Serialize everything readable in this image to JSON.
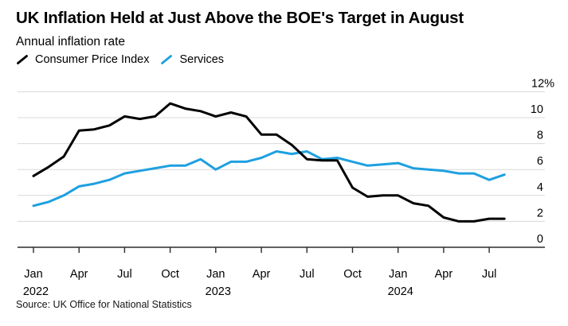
{
  "header": {
    "title": "UK Inflation Held at Just Above the BOE's Target in August",
    "subtitle": "Annual inflation rate"
  },
  "legend": [
    {
      "label": "Consumer Price Index",
      "color": "#000000",
      "icon": "diagonal-line"
    },
    {
      "label": "Services",
      "color": "#1ea0e0",
      "icon": "diagonal-line"
    }
  ],
  "source": "Source: UK Office for National Statistics",
  "chart_data": {
    "type": "line",
    "title": "UK Inflation Held at Just Above the BOE's Target in August",
    "subtitle": "Annual inflation rate",
    "xlabel": "",
    "ylabel": "Annual inflation rate (%)",
    "ylim": [
      0,
      12
    ],
    "grid": "horizontal-light",
    "legend_position": "top-left",
    "x": [
      "Jan 2022",
      "Feb 2022",
      "Mar 2022",
      "Apr 2022",
      "May 2022",
      "Jun 2022",
      "Jul 2022",
      "Aug 2022",
      "Sep 2022",
      "Oct 2022",
      "Nov 2022",
      "Dec 2022",
      "Jan 2023",
      "Feb 2023",
      "Mar 2023",
      "Apr 2023",
      "May 2023",
      "Jun 2023",
      "Jul 2023",
      "Aug 2023",
      "Sep 2023",
      "Oct 2023",
      "Nov 2023",
      "Dec 2023",
      "Jan 2024",
      "Feb 2024",
      "Mar 2024",
      "Apr 2024",
      "May 2024",
      "Jun 2024",
      "Jul 2024",
      "Aug 2024"
    ],
    "series": [
      {
        "name": "Consumer Price Index",
        "color": "#000000",
        "values": [
          5.5,
          6.2,
          7.0,
          9.0,
          9.1,
          9.4,
          10.1,
          9.9,
          10.1,
          11.1,
          10.7,
          10.5,
          10.1,
          10.4,
          10.1,
          8.7,
          8.7,
          7.9,
          6.8,
          6.7,
          6.7,
          4.6,
          3.9,
          4.0,
          4.0,
          3.4,
          3.2,
          2.3,
          2.0,
          2.0,
          2.2,
          2.2
        ]
      },
      {
        "name": "Services",
        "color": "#1ea0e0",
        "values": [
          3.2,
          3.5,
          4.0,
          4.7,
          4.9,
          5.2,
          5.7,
          5.9,
          6.1,
          6.3,
          6.3,
          6.8,
          6.0,
          6.6,
          6.6,
          6.9,
          7.4,
          7.2,
          7.4,
          6.8,
          6.9,
          6.6,
          6.3,
          6.4,
          6.5,
          6.1,
          6.0,
          5.9,
          5.7,
          5.7,
          5.2,
          5.6
        ]
      }
    ],
    "yticks": [
      0,
      2,
      4,
      6,
      8,
      10,
      12
    ],
    "ytick_labels": [
      "0",
      "2",
      "4",
      "6",
      "8",
      "10",
      "12%"
    ],
    "xticks": [
      {
        "index": 0,
        "label": "Jan",
        "year": "2022"
      },
      {
        "index": 3,
        "label": "Apr"
      },
      {
        "index": 6,
        "label": "Jul"
      },
      {
        "index": 9,
        "label": "Oct"
      },
      {
        "index": 12,
        "label": "Jan",
        "year": "2023"
      },
      {
        "index": 15,
        "label": "Apr"
      },
      {
        "index": 18,
        "label": "Jul"
      },
      {
        "index": 21,
        "label": "Oct"
      },
      {
        "index": 24,
        "label": "Jan",
        "year": "2024"
      },
      {
        "index": 27,
        "label": "Apr"
      },
      {
        "index": 30,
        "label": "Jul"
      }
    ],
    "colors": {
      "grid": "#d9d9d9",
      "axis": "#2b2b2b"
    }
  }
}
